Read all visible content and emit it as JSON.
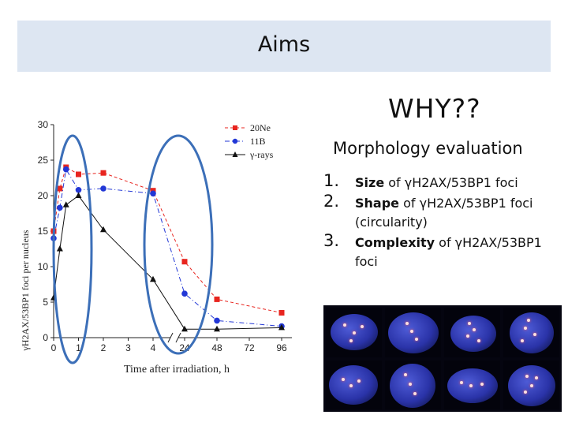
{
  "slide": {
    "title": "Aims",
    "why": "WHY??",
    "subtitle": "Morphology evaluation",
    "list": [
      {
        "number": "1.",
        "bold": "Size",
        "rest": " of γH2AX/53BP1 foci"
      },
      {
        "number": "2.",
        "bold": "Shape",
        "rest": "  of γH2AX/53BP1 foci (circularity)"
      },
      {
        "number": "3.",
        "bold": "Complexity",
        "rest": " of γH2AX/53BP1 foci"
      }
    ]
  },
  "chart_data": {
    "type": "line",
    "xlabel": "Time after irradiation, h",
    "ylabel": "γH2AX/53BP1 foci per nucleus",
    "x_ticks": [
      "0",
      "1",
      "2",
      "3",
      "4",
      "24",
      "48",
      "72",
      "96"
    ],
    "y_ticks": [
      "0",
      "5",
      "10",
      "15",
      "20",
      "25",
      "30"
    ],
    "ylim": [
      0,
      30
    ],
    "x_axis_break": "between 4 and 24",
    "legend_position": "top-right",
    "series": [
      {
        "name": "20Ne",
        "color": "#e8251f",
        "marker": "square",
        "line": "dashed",
        "x": [
          0,
          0.25,
          0.5,
          1,
          2,
          4,
          24,
          48,
          96
        ],
        "y": [
          15.0,
          21.0,
          24.0,
          23.0,
          23.2,
          20.7,
          10.7,
          5.4,
          3.5
        ]
      },
      {
        "name": "11B",
        "color": "#2237d6",
        "marker": "circle",
        "line": "dash-dot",
        "x": [
          0,
          0.25,
          0.5,
          1,
          2,
          4,
          24,
          48,
          96
        ],
        "y": [
          14.0,
          18.3,
          23.7,
          20.8,
          21.0,
          20.3,
          6.2,
          2.4,
          1.6
        ]
      },
      {
        "name": "γ-rays",
        "color": "#111111",
        "marker": "triangle",
        "line": "solid",
        "x": [
          0,
          0.25,
          0.5,
          1,
          2,
          4,
          24,
          48,
          96
        ],
        "y": [
          5.6,
          12.5,
          18.7,
          20.0,
          15.2,
          8.2,
          1.2,
          1.2,
          1.4
        ]
      }
    ],
    "highlights": [
      "early time points (0–1 h)",
      "late time points (4–48 h)"
    ]
  },
  "image": {
    "name": "immunofluorescence nuclei micrographs",
    "panels": 8
  }
}
